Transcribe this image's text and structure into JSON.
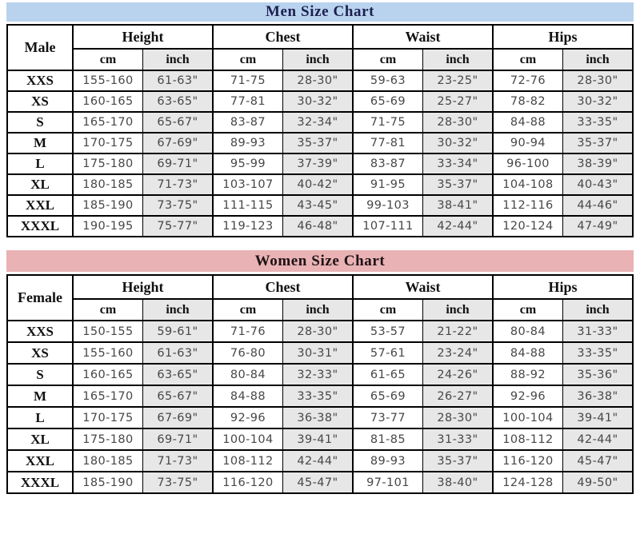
{
  "page": {
    "background": "#ffffff",
    "border_color": "#000000",
    "shade_color": "#e7e7e7",
    "data_text_color": "#474747"
  },
  "men_chart": {
    "title": "Men Size Chart",
    "title_bg": "#b9d3ee",
    "title_color": "#1c2050",
    "row_label_header": "Male",
    "measure_headers": [
      "Height",
      "Chest",
      "Waist",
      "Hips"
    ],
    "unit_headers": [
      "cm",
      "inch"
    ],
    "rows": [
      {
        "size": "XXS",
        "values": [
          "155-160",
          "61-63\"",
          "71-75",
          "28-30\"",
          "59-63",
          "23-25\"",
          "72-76",
          "28-30\""
        ]
      },
      {
        "size": "XS",
        "values": [
          "160-165",
          "63-65\"",
          "77-81",
          "30-32\"",
          "65-69",
          "25-27\"",
          "78-82",
          "30-32\""
        ]
      },
      {
        "size": "S",
        "values": [
          "165-170",
          "65-67\"",
          "83-87",
          "32-34\"",
          "71-75",
          "28-30\"",
          "84-88",
          "33-35\""
        ]
      },
      {
        "size": "M",
        "values": [
          "170-175",
          "67-69\"",
          "89-93",
          "35-37\"",
          "77-81",
          "30-32\"",
          "90-94",
          "35-37\""
        ]
      },
      {
        "size": "L",
        "values": [
          "175-180",
          "69-71\"",
          "95-99",
          "37-39\"",
          "83-87",
          "33-34\"",
          "96-100",
          "38-39\""
        ]
      },
      {
        "size": "XL",
        "values": [
          "180-185",
          "71-73\"",
          "103-107",
          "40-42\"",
          "91-95",
          "35-37\"",
          "104-108",
          "40-43\""
        ]
      },
      {
        "size": "XXL",
        "values": [
          "185-190",
          "73-75\"",
          "111-115",
          "43-45\"",
          "99-103",
          "38-41\"",
          "112-116",
          "44-46\""
        ]
      },
      {
        "size": "XXXL",
        "values": [
          "190-195",
          "75-77\"",
          "119-123",
          "46-48\"",
          "107-111",
          "42-44\"",
          "120-124",
          "47-49\""
        ]
      }
    ]
  },
  "women_chart": {
    "title": "Women Size Chart",
    "title_bg": "#e9b2b4",
    "title_color": "#1d1214",
    "row_label_header": "Female",
    "measure_headers": [
      "Height",
      "Chest",
      "Waist",
      "Hips"
    ],
    "unit_headers": [
      "cm",
      "inch"
    ],
    "rows": [
      {
        "size": "XXS",
        "values": [
          "150-155",
          "59-61\"",
          "71-76",
          "28-30\"",
          "53-57",
          "21-22\"",
          "80-84",
          "31-33\""
        ]
      },
      {
        "size": "XS",
        "values": [
          "155-160",
          "61-63\"",
          "76-80",
          "30-31\"",
          "57-61",
          "23-24\"",
          "84-88",
          "33-35\""
        ]
      },
      {
        "size": "S",
        "values": [
          "160-165",
          "63-65\"",
          "80-84",
          "32-33\"",
          "61-65",
          "24-26\"",
          "88-92",
          "35-36\""
        ]
      },
      {
        "size": "M",
        "values": [
          "165-170",
          "65-67\"",
          "84-88",
          "33-35\"",
          "65-69",
          "26-27\"",
          "92-96",
          "36-38\""
        ]
      },
      {
        "size": "L",
        "values": [
          "170-175",
          "67-69\"",
          "92-96",
          "36-38\"",
          "73-77",
          "28-30\"",
          "100-104",
          "39-41\""
        ]
      },
      {
        "size": "XL",
        "values": [
          "175-180",
          "69-71\"",
          "100-104",
          "39-41\"",
          "81-85",
          "31-33\"",
          "108-112",
          "42-44\""
        ]
      },
      {
        "size": "XXL",
        "values": [
          "180-185",
          "71-73\"",
          "108-112",
          "42-44\"",
          "89-93",
          "35-37\"",
          "116-120",
          "45-47\""
        ]
      },
      {
        "size": "XXXL",
        "values": [
          "185-190",
          "73-75\"",
          "116-120",
          "45-47\"",
          "97-101",
          "38-40\"",
          "124-128",
          "49-50\""
        ]
      }
    ]
  }
}
